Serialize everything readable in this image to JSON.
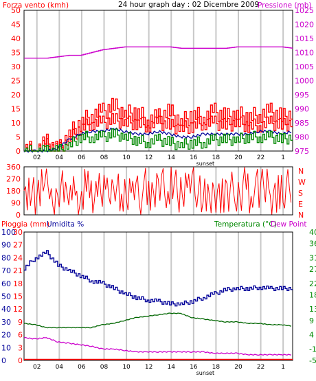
{
  "header": {
    "title": "24 hour graph day : 02 Dicembre 2009",
    "left_label": "Forza vento (kmh)",
    "right_label": "Pressione (mb)"
  },
  "axes": {
    "hour_ticks": [
      "02",
      "04",
      "06",
      "08",
      "10",
      "12",
      "14",
      "16",
      "18",
      "20",
      "22",
      "1"
    ],
    "sunset_label": "sunset"
  },
  "colors": {
    "wind": "#ff0000",
    "gust": "#ff0000",
    "avg_wind": "#000099",
    "green": "#008800",
    "pressure": "#cc00cc",
    "direction": "#ff0000",
    "humidity": "#000099",
    "temperature": "#006600",
    "dew": "#cc00cc",
    "rain": "#ff0000",
    "grid": "#c8c8c8"
  },
  "chart_data": [
    {
      "type": "line",
      "name": "wind-pressure",
      "x": [
        0,
        1,
        2,
        3,
        4,
        5,
        6,
        7,
        8,
        9,
        10,
        11,
        12,
        13,
        14,
        15,
        16,
        17,
        18,
        19,
        20,
        21,
        22,
        23,
        24
      ],
      "left_axis": {
        "label": "Forza vento (kmh)",
        "ylim": [
          0,
          50
        ],
        "ticks": [
          0,
          5,
          10,
          15,
          20,
          25,
          30,
          35,
          40,
          45,
          50
        ]
      },
      "right_axis": {
        "label": "Pressione (mb)",
        "ylim": [
          975,
          1025
        ],
        "ticks": [
          975,
          980,
          985,
          990,
          995,
          1000,
          1005,
          1010,
          1015,
          1020,
          1025
        ]
      },
      "series": [
        {
          "key": "pressure",
          "axis": "right",
          "values": [
            1008,
            1008,
            1008,
            1008.5,
            1009,
            1009,
            1010,
            1011,
            1011.5,
            1012,
            1012,
            1012,
            1012,
            1012,
            1011.5,
            1011.5,
            1011.5,
            1011.5,
            1011.5,
            1012,
            1012,
            1012,
            1012,
            1012,
            1011.5
          ]
        },
        {
          "key": "gust",
          "axis": "left",
          "values": [
            1,
            0,
            3,
            0,
            6,
            10,
            13,
            14,
            16,
            13,
            14,
            11,
            12,
            14,
            10,
            13,
            12,
            14,
            12,
            13,
            12,
            13,
            14,
            12,
            13
          ]
        },
        {
          "key": "wind",
          "axis": "left",
          "values": [
            0,
            0,
            2,
            0,
            4,
            8,
            10,
            10,
            11,
            10,
            10,
            9,
            10,
            9,
            8,
            9,
            10,
            10,
            9,
            10,
            9,
            9,
            10,
            9,
            10
          ]
        },
        {
          "key": "avg_wind",
          "axis": "left",
          "values": [
            0,
            0,
            0,
            1,
            4,
            6,
            7,
            7,
            8,
            7,
            6,
            6,
            7,
            6,
            5,
            5,
            6,
            6,
            6,
            6,
            6,
            7,
            7,
            6,
            7
          ]
        },
        {
          "key": "green",
          "axis": "left",
          "values": [
            0,
            0,
            0,
            0,
            2,
            5,
            5,
            5,
            6,
            5,
            4,
            3,
            4,
            3,
            2,
            3,
            3,
            4,
            4,
            4,
            5,
            5,
            5,
            4,
            5
          ]
        }
      ]
    },
    {
      "type": "line",
      "name": "wind-direction",
      "x": [
        0,
        1,
        2,
        3,
        4,
        5,
        6,
        7,
        8,
        9,
        10,
        11,
        12,
        13,
        14,
        15,
        16,
        17,
        18,
        19,
        20,
        21,
        22,
        23,
        24
      ],
      "left_axis": {
        "ylim": [
          0,
          360
        ],
        "ticks": [
          0,
          90,
          180,
          270,
          360
        ]
      },
      "right_axis": {
        "ticks": [
          "N",
          "W",
          "S",
          "E",
          "N"
        ]
      },
      "series": [
        {
          "key": "direction",
          "values": [
            180,
            40,
            60,
            260,
            220,
            90,
            300,
            140,
            330,
            60,
            250,
            120,
            350,
            200,
            80,
            310,
            150,
            270,
            30,
            190,
            330,
            110,
            240,
            70,
            200
          ]
        }
      ]
    },
    {
      "type": "line",
      "name": "rain-humidity-temp",
      "x": [
        0,
        1,
        2,
        3,
        4,
        5,
        6,
        7,
        8,
        9,
        10,
        11,
        12,
        13,
        14,
        15,
        16,
        17,
        18,
        19,
        20,
        21,
        22,
        23,
        24
      ],
      "left_axis_rain": {
        "label": "Pioggia (mm)",
        "ylim": [
          0,
          30
        ],
        "ticks": [
          0,
          3,
          6,
          9,
          12,
          15,
          18,
          21,
          24,
          27,
          30
        ]
      },
      "left_axis_humidity": {
        "label": "Umidita %",
        "ylim": [
          0,
          100
        ],
        "ticks": [
          0,
          10,
          20,
          30,
          40,
          50,
          60,
          70,
          80,
          90,
          100
        ]
      },
      "right_axis": {
        "label": "Temperatura (°C)Dew Point",
        "ylim": [
          -5,
          40
        ],
        "ticks": [
          -5,
          -1,
          4,
          9,
          13,
          18,
          22,
          27,
          31,
          36,
          40
        ]
      },
      "series": [
        {
          "key": "humidity",
          "axis": "humidity",
          "values": [
            72,
            80,
            84,
            74,
            70,
            66,
            62,
            60,
            56,
            52,
            49,
            47,
            46,
            44,
            44,
            46,
            49,
            52,
            55,
            56,
            56,
            57,
            56,
            56,
            56
          ]
        },
        {
          "key": "temperature",
          "axis": "right",
          "values": [
            8,
            7.5,
            6.5,
            6.5,
            6.5,
            6.5,
            6.5,
            7.5,
            8,
            9,
            10,
            10.5,
            11,
            11.5,
            11.5,
            10,
            9.5,
            9,
            8.5,
            8.5,
            8,
            8,
            7.5,
            7.5,
            7
          ]
        },
        {
          "key": "dew",
          "axis": "right",
          "values": [
            3,
            2.5,
            3,
            1.5,
            1,
            0.5,
            0,
            -1,
            -1,
            -1.5,
            -2,
            -2,
            -2,
            -2,
            -2,
            -2,
            -2,
            -2.5,
            -2.5,
            -2.5,
            -3,
            -3,
            -3,
            -3,
            -3
          ]
        },
        {
          "key": "rain",
          "axis": "rain",
          "values": [
            0,
            0,
            0,
            0,
            0,
            0,
            0,
            0,
            0,
            0,
            0,
            0,
            0,
            0,
            0,
            0,
            0,
            0,
            0,
            0,
            0,
            0,
            0,
            0,
            0
          ]
        }
      ]
    }
  ]
}
